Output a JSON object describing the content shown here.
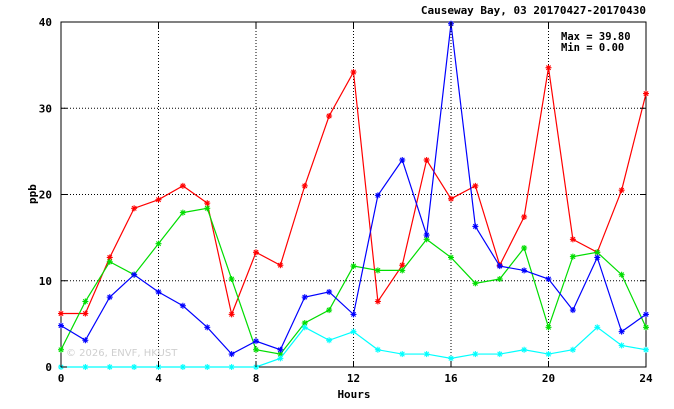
{
  "chart_data": {
    "type": "line",
    "title": "Causeway Bay, 03 20170427-20170430",
    "xlabel": "Hours",
    "ylabel": "ppb",
    "xlim": [
      0,
      24
    ],
    "ylim": [
      0,
      40
    ],
    "xticks": [
      0,
      4,
      8,
      12,
      16,
      20,
      24
    ],
    "yticks": [
      0,
      10,
      20,
      30,
      40
    ],
    "grid": true,
    "legend": "none",
    "stats": {
      "max_label": "Max = 39.80",
      "min_label": "Min =  0.00"
    },
    "watermark": "© 2026, ENVF, HKUST",
    "x": [
      0,
      1,
      2,
      3,
      4,
      5,
      6,
      7,
      8,
      9,
      10,
      11,
      12,
      13,
      14,
      15,
      16,
      17,
      18,
      19,
      20,
      21,
      22,
      23,
      24
    ],
    "series": [
      {
        "color": "#ff0000",
        "values": [
          6.2,
          6.2,
          12.7,
          18.4,
          19.4,
          21.0,
          19.0,
          6.1,
          13.3,
          11.8,
          21.0,
          29.1,
          34.2,
          7.6,
          11.8,
          24.0,
          19.5,
          21.0,
          11.8,
          17.4,
          34.7,
          14.8,
          13.3,
          20.5,
          31.7
        ]
      },
      {
        "color": "#00dd00",
        "values": [
          2.0,
          7.6,
          12.2,
          10.7,
          14.3,
          17.9,
          18.4,
          10.2,
          2.0,
          1.5,
          5.1,
          6.6,
          11.7,
          11.2,
          11.2,
          14.8,
          12.7,
          9.7,
          10.2,
          13.8,
          4.6,
          12.8,
          13.3,
          10.7,
          4.6
        ]
      },
      {
        "color": "#0000ff",
        "values": [
          4.8,
          3.1,
          8.1,
          10.7,
          8.7,
          7.1,
          4.6,
          1.5,
          3.0,
          2.0,
          8.1,
          8.7,
          6.1,
          19.9,
          24.0,
          15.3,
          39.8,
          16.3,
          11.7,
          11.2,
          10.2,
          6.6,
          12.7,
          4.1,
          6.1
        ]
      },
      {
        "color": "#00ffff",
        "values": [
          0.0,
          0.0,
          0.0,
          0.0,
          0.0,
          0.0,
          0.0,
          0.0,
          0.0,
          1.0,
          4.6,
          3.1,
          4.1,
          2.0,
          1.5,
          1.5,
          1.0,
          1.5,
          1.5,
          2.0,
          1.5,
          2.0,
          4.6,
          2.5,
          2.0
        ]
      }
    ]
  }
}
